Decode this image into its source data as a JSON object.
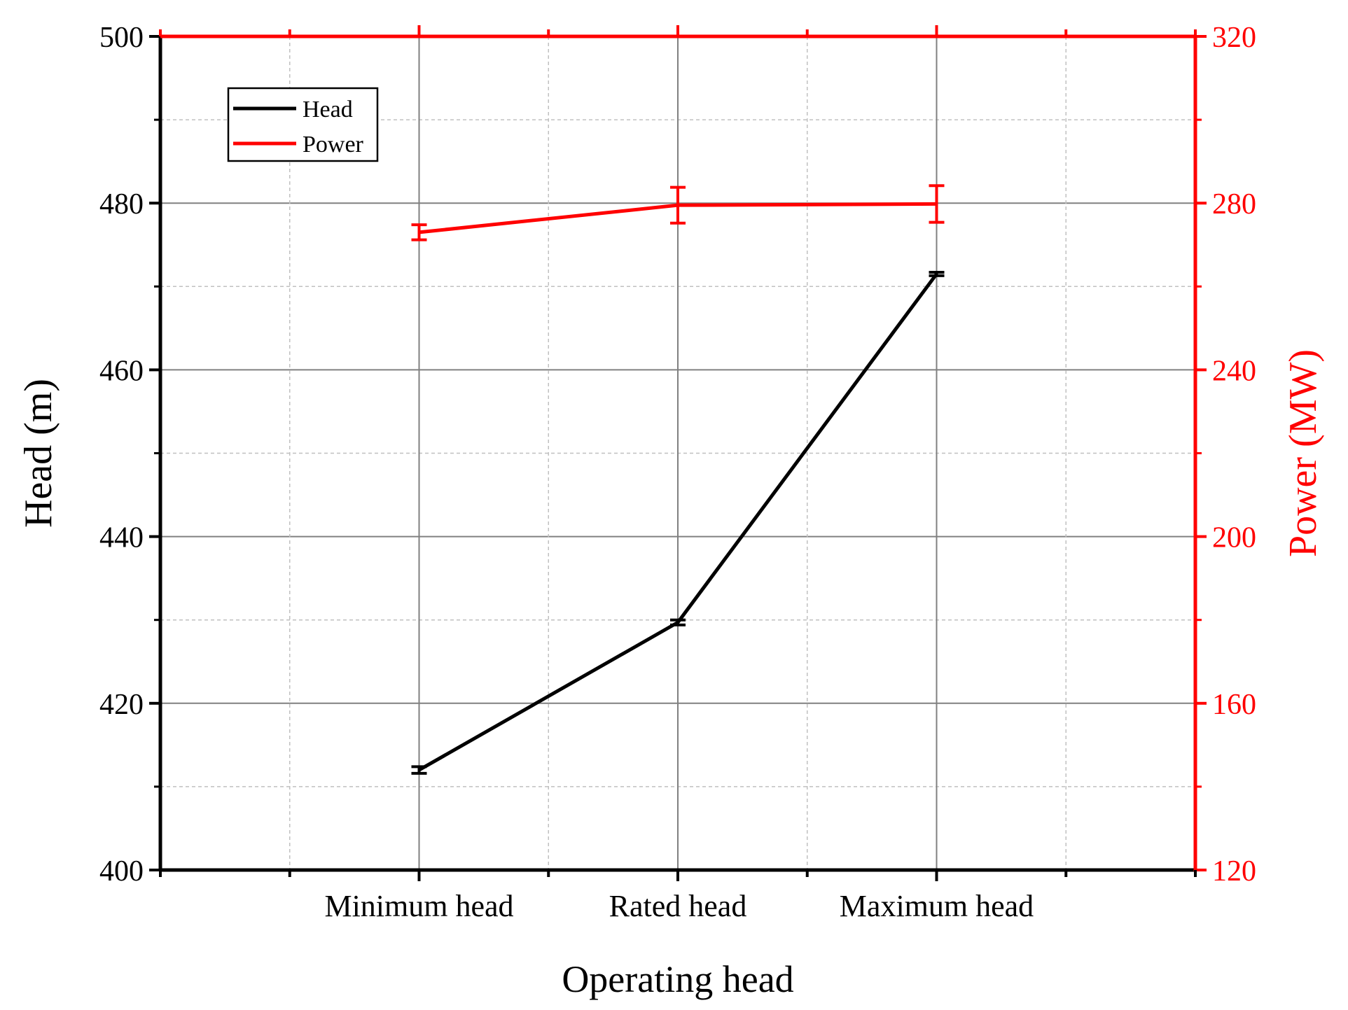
{
  "chart_data": {
    "type": "line",
    "title": "",
    "categories": [
      "Minimum head",
      "Rated head",
      "Maximum head"
    ],
    "xlabel": "Operating head",
    "y_left": {
      "label": "Head (m)",
      "range": [
        400,
        500
      ],
      "ticks": [
        400,
        420,
        440,
        460,
        480,
        500
      ],
      "color": "#000000"
    },
    "y_right": {
      "label": "Power (MW)",
      "range": [
        120,
        320
      ],
      "ticks": [
        120,
        160,
        200,
        240,
        280,
        320
      ],
      "color": "#ff0000"
    },
    "series": [
      {
        "name": "Head",
        "axis": "left",
        "color": "#000000",
        "values": [
          412.0,
          429.7,
          471.5
        ],
        "error": [
          0.4,
          0.3,
          0.2
        ]
      },
      {
        "name": "Power",
        "axis": "right",
        "color": "#ff0000",
        "values": [
          273.0,
          279.5,
          279.8
        ],
        "error": [
          1.8,
          4.3,
          4.4
        ]
      }
    ],
    "grid": true,
    "legend": "top-left"
  }
}
